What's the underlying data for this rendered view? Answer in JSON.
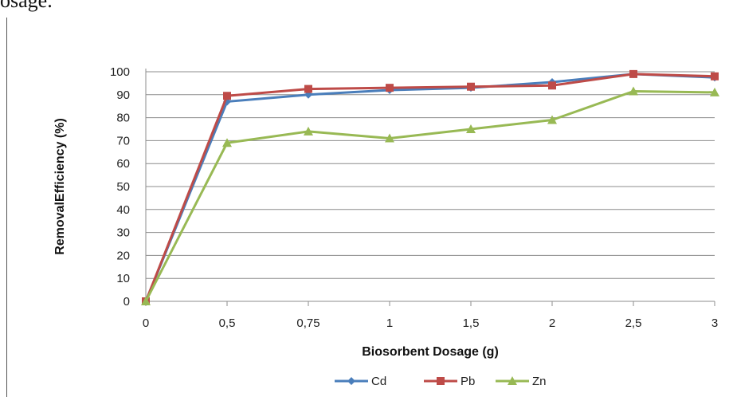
{
  "caption_fragment": "osage.",
  "chart_data": {
    "type": "line",
    "categories": [
      "0",
      "0,5",
      "0,75",
      "1",
      "1,5",
      "2",
      "2,5",
      "3"
    ],
    "xlabel": "Biosorbent Dosage (g)",
    "ylabel": "RemovalEfficiency (%)",
    "ylim": [
      0,
      100
    ],
    "yticks": [
      0,
      10,
      20,
      30,
      40,
      50,
      60,
      70,
      80,
      90,
      100
    ],
    "grid": true,
    "legend": "bottom",
    "series": [
      {
        "name": "Cd",
        "color": "#4a7ebb",
        "marker": "diamond",
        "values": [
          0,
          87,
          90,
          92,
          93,
          95.5,
          99,
          97.5
        ]
      },
      {
        "name": "Pb",
        "color": "#be4b48",
        "marker": "square",
        "values": [
          0,
          89.5,
          92.5,
          93,
          93.5,
          94,
          99,
          98
        ]
      },
      {
        "name": "Zn",
        "color": "#98b954",
        "marker": "triangle",
        "values": [
          0,
          69,
          74,
          71,
          75,
          79,
          91.5,
          91
        ]
      }
    ]
  }
}
